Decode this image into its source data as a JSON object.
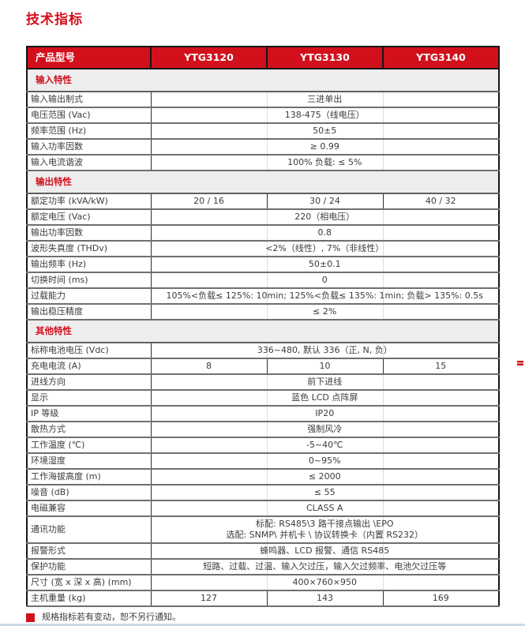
{
  "accent_color": "#d2101c",
  "page": {
    "title": "技术指标",
    "footer_note": "规格指标若有变动，恕不另行通知。"
  },
  "table": {
    "header": {
      "product_model_label": "产品型号",
      "models": [
        "YTG3120",
        "YTG3130",
        "YTG3140"
      ]
    },
    "sections": [
      {
        "title": "输入特性",
        "rows": [
          {
            "label": "输入输出制式",
            "values": [
              "三进单出"
            ]
          },
          {
            "label": "电压范围 (Vac)",
            "values": [
              "138-475（线电压）"
            ]
          },
          {
            "label": "频率范围 (Hz)",
            "values": [
              "50±5"
            ]
          },
          {
            "label": "输入功率因数",
            "values": [
              "≥ 0.99"
            ]
          },
          {
            "label": "输入电流谐波",
            "values": [
              "100% 负载: ≤ 5%"
            ]
          }
        ]
      },
      {
        "title": "输出特性",
        "rows": [
          {
            "label": "额定功率 (kVA/kW)",
            "values": [
              "20 / 16",
              "30 / 24",
              "40 / 32"
            ]
          },
          {
            "label": "额定电压 (Vac)",
            "values": [
              "220（相电压）"
            ]
          },
          {
            "label": "输出功率因数",
            "values": [
              "0.8"
            ]
          },
          {
            "label": "波形失真度 (THDv)",
            "values": [
              "<2%（线性）, 7%（非线性）"
            ]
          },
          {
            "label": "输出频率 (Hz)",
            "values": [
              "50±0.1"
            ]
          },
          {
            "label": "切换时间 (ms)",
            "values": [
              "0"
            ]
          },
          {
            "label": "过载能力",
            "values": [
              "105%<负载≤ 125%: 10min; 125%<负载≤ 135%: 1min; 负载> 135%: 0.5s"
            ]
          },
          {
            "label": "输出稳压精度",
            "values": [
              "≤ 2%"
            ]
          }
        ]
      },
      {
        "title": "其他特性",
        "rows": [
          {
            "label": "标称电池电压 (Vdc)",
            "values": [
              "336~480, 默认 336（正, N, 负）"
            ]
          },
          {
            "label": "充电电流 (A)",
            "values": [
              "8",
              "10",
              "15"
            ]
          },
          {
            "label": "进线方向",
            "values": [
              "前下进线"
            ]
          },
          {
            "label": "显示",
            "values": [
              "蓝色 LCD 点阵屏"
            ]
          },
          {
            "label": "IP 等级",
            "values": [
              "IP20"
            ]
          },
          {
            "label": "散热方式",
            "values": [
              "强制风冷"
            ]
          },
          {
            "label": "工作温度 (℃)",
            "values": [
              "-5~40℃"
            ]
          },
          {
            "label": "环境湿度",
            "values": [
              "0~95%"
            ]
          },
          {
            "label": "工作海拔高度 (m)",
            "values": [
              "≤ 2000"
            ]
          },
          {
            "label": "噪音 (dB)",
            "values": [
              "≤ 55"
            ]
          },
          {
            "label": "电磁兼容",
            "values": [
              "CLASS A"
            ]
          },
          {
            "label": "通讯功能",
            "lines": [
              "标配: RS485\\3 路干接点输出 \\EPO",
              "选配: SNMP\\ 并机卡 \\ 协议转换卡（内置 RS232）"
            ]
          },
          {
            "label": "报警形式",
            "values": [
              "蜂鸣器、LCD 报警、通信 RS485"
            ]
          },
          {
            "label": "保护功能",
            "values": [
              "短路、过载、过温、输入欠过压，输入欠过频率、电池欠过压等"
            ]
          },
          {
            "label": "尺寸 (宽 x 深 x 高) (mm)",
            "values": [
              "400×760×950"
            ]
          },
          {
            "label": "主机重量 (kg)",
            "values": [
              "127",
              "143",
              "169"
            ]
          }
        ]
      }
    ]
  }
}
